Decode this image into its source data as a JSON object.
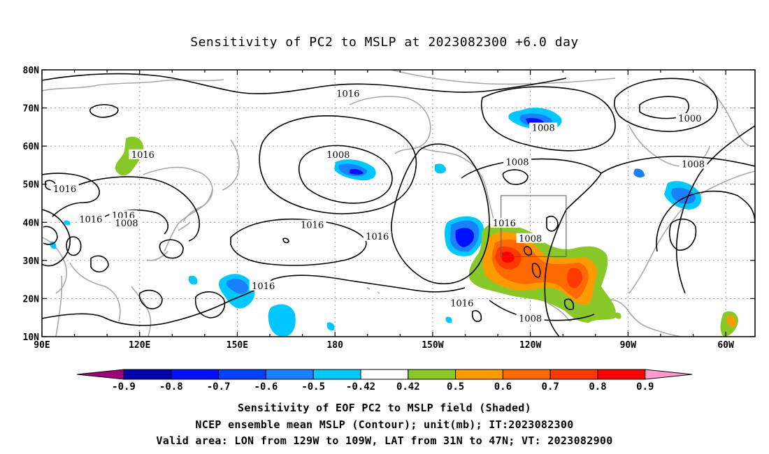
{
  "title": "Sensitivity of PC2 to MSLP at 2023082300 +6.0 day",
  "axes": {
    "lat_labels": [
      "10N",
      "20N",
      "30N",
      "40N",
      "50N",
      "60N",
      "70N",
      "80N"
    ],
    "lon_labels": [
      "90E",
      "120E",
      "150E",
      "180",
      "150W",
      "120W",
      "90W",
      "60W"
    ]
  },
  "contour_labels": [
    {
      "text": "1016",
      "lon": 184,
      "lat": 73.5
    },
    {
      "text": "1016",
      "lon": 121,
      "lat": 57.5
    },
    {
      "text": "1016",
      "lon": 97,
      "lat": 48.5
    },
    {
      "text": "1016",
      "lon": 115,
      "lat": 41.5
    },
    {
      "text": "1016",
      "lon": 173,
      "lat": 39
    },
    {
      "text": "1016",
      "lon": 105,
      "lat": 40.5
    },
    {
      "text": "1016",
      "lon": 193,
      "lat": 36
    },
    {
      "text": "1016",
      "lon": 158,
      "lat": 23
    },
    {
      "text": "1016",
      "lon": 219,
      "lat": 18.5
    },
    {
      "text": "1016",
      "lon": 232,
      "lat": 39.5
    },
    {
      "text": "1008",
      "lon": 181,
      "lat": 57.5
    },
    {
      "text": "1008",
      "lon": 116,
      "lat": 39.5
    },
    {
      "text": "1008",
      "lon": 244,
      "lat": 64.5
    },
    {
      "text": "1008",
      "lon": 236,
      "lat": 55.5
    },
    {
      "text": "1008",
      "lon": 240,
      "lat": 35.5
    },
    {
      "text": "1008",
      "lon": 290,
      "lat": 55
    },
    {
      "text": "1008",
      "lon": 240,
      "lat": 14.5
    },
    {
      "text": "1000",
      "lon": 289,
      "lat": 67
    }
  ],
  "colorbar": {
    "labels": [
      "-0.9",
      "-0.8",
      "-0.7",
      "-0.6",
      "-0.5",
      "-0.42",
      "0.42",
      "0.5",
      "0.6",
      "0.7",
      "0.8",
      "0.9"
    ],
    "colors": [
      "#a0007a",
      "#0000aa",
      "#0010ff",
      "#0040ff",
      "#1a80ff",
      "#00c8ff",
      "#ffffff",
      "#88c828",
      "#ff9a00",
      "#ff6a00",
      "#ff3a00",
      "#ff0000",
      "#ff9ad0"
    ]
  },
  "captions": {
    "line1": "Sensitivity of EOF PC2 to MSLP field (Shaded)",
    "line2": "NCEP ensemble mean MSLP (Contour); unit(mb); IT:2023082300",
    "line3": "Valid area: LON from 129W to 109W, LAT from 31N to 47N; VT: 2023082900"
  },
  "valid_box": {
    "lon_min": 231,
    "lon_max": 251,
    "lat_min": 31,
    "lat_max": 47
  }
}
